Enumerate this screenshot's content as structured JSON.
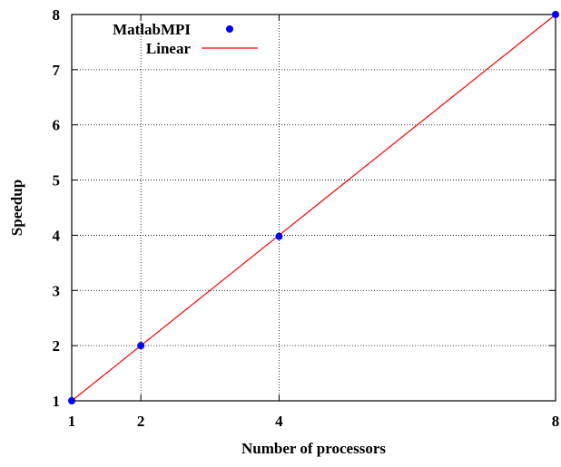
{
  "chart_data": {
    "type": "scatter",
    "title": "",
    "xlabel": "Number of processors",
    "ylabel": "Speedup",
    "xlim": [
      1,
      8
    ],
    "ylim": [
      1,
      8
    ],
    "x_ticks": [
      1,
      2,
      4,
      8
    ],
    "y_ticks": [
      1,
      2,
      3,
      4,
      5,
      6,
      7,
      8
    ],
    "grid": true,
    "legend_position": "top-left",
    "series": [
      {
        "name": "MatlabMPI",
        "style": "points",
        "color": "#0000ff",
        "points": [
          {
            "x": 1,
            "y": 1.0
          },
          {
            "x": 2,
            "y": 2.0
          },
          {
            "x": 4,
            "y": 3.98
          },
          {
            "x": 8,
            "y": 8.0
          }
        ]
      },
      {
        "name": "Linear",
        "style": "line",
        "color": "#ff0000",
        "points": [
          {
            "x": 1,
            "y": 1
          },
          {
            "x": 8,
            "y": 8
          }
        ]
      }
    ]
  }
}
